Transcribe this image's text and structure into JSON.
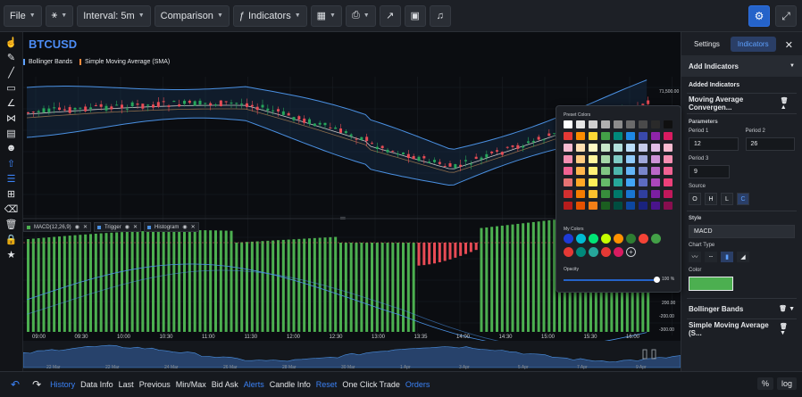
{
  "toolbar": {
    "file": "File",
    "interval": "Interval: 5m",
    "comparison": "Comparison",
    "indicators": "Indicators"
  },
  "chart": {
    "symbol": "BTCUSD",
    "legend": [
      "Bollinger Bands",
      "Simple Moving Average (SMA)"
    ],
    "price_label": "71,500.00",
    "macd_legend": [
      "MACD(12,26,9)",
      "Trigger",
      "Histogram"
    ],
    "macd_axis": [
      "200.00",
      "-200.00",
      "-300.00"
    ],
    "time_ticks": [
      "09:00",
      "09:30",
      "10:00",
      "10:30",
      "11:00",
      "11:30",
      "12:00",
      "12:30",
      "13:00",
      "13:35",
      "14:00",
      "14:30",
      "15:00",
      "15:30",
      "16:00"
    ],
    "date_ticks": [
      "22 Mar",
      "22 Mar",
      "24 Mar",
      "26 Mar",
      "28 Mar",
      "30 Mar",
      "1 Apr",
      "3 Apr",
      "5 Apr",
      "7 Apr",
      "9 Apr"
    ]
  },
  "bottombar": {
    "items": [
      "History",
      "Data Info",
      "Last",
      "Previous",
      "Min/Max",
      "Bid Ask",
      "Alerts",
      "Candle Info",
      "Reset",
      "One Click Trade",
      "Orders"
    ],
    "right": [
      "%",
      "log"
    ]
  },
  "panel": {
    "tabs": [
      "Settings",
      "Indicators"
    ],
    "add_indicators": "Add Indicators",
    "added_indicators": "Added Indicators",
    "macd_title": "Moving Average Convergen...",
    "parameters": "Parameters",
    "period1_label": "Period 1",
    "period1": "12",
    "period2_label": "Period 2",
    "period2": "26",
    "period3_label": "Period 3",
    "period3": "9",
    "source_label": "Source",
    "sources": [
      "O",
      "H",
      "L",
      "C"
    ],
    "style_label": "Style",
    "style_value": "MACD",
    "chart_type_label": "Chart Type",
    "color_label": "Color",
    "color_value": "#4caf50",
    "bollinger": "Bollinger Bands",
    "sma": "Simple Moving Average (S..."
  },
  "popup": {
    "preset": "Preset Colors",
    "my_colors": "My Colors",
    "opacity": "Opacity",
    "opacity_value": "100",
    "opacity_unit": "%"
  }
}
